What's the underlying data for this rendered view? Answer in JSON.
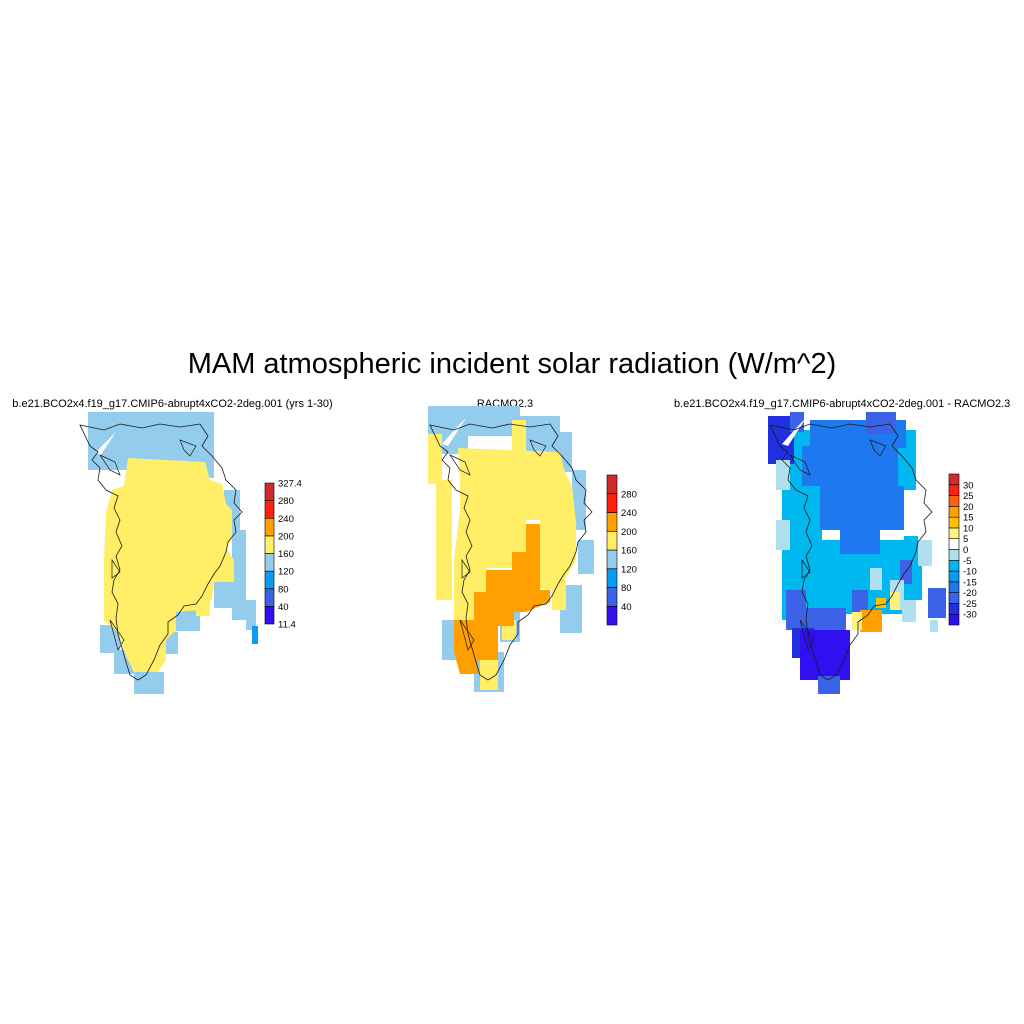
{
  "title": "MAM atmospheric incident solar radiation (W/m^2)",
  "panels": [
    {
      "id": "p1",
      "title": "b.e21.BCO2x4.f19_g17.CMIP6-abrupt4xCO2-2deg.001 (yrs 1-30)",
      "colorbar": {
        "colors": [
          "#3010f0",
          "#3c62e8",
          "#0a9cf0",
          "#94cced",
          "#ffee66",
          "#ffa000",
          "#ff2010",
          "#d02a2a"
        ],
        "labels": [
          "11.4",
          "40",
          "80",
          "120",
          "160",
          "200",
          "240",
          "280",
          "327.4"
        ]
      }
    },
    {
      "id": "p2",
      "title": "RACMO2.3",
      "colorbar": {
        "colors": [
          "#3010f0",
          "#3c62e8",
          "#0a9cf0",
          "#94cced",
          "#ffee66",
          "#ffa000",
          "#ff2010",
          "#d02a2a"
        ],
        "labels": [
          "40",
          "80",
          "120",
          "160",
          "200",
          "240",
          "280"
        ]
      }
    },
    {
      "id": "p3",
      "title": "b.e21.BCO2x4.f19_g17.CMIP6-abrupt4xCO2-2deg.001 - RACMO2.3",
      "colorbar": {
        "colors": [
          "#3010f0",
          "#2030e0",
          "#3c62e8",
          "#1e78f0",
          "#0a9cf0",
          "#00b8f0",
          "#b0e0f0",
          "#ffffff",
          "#fff080",
          "#ffc000",
          "#ffa000",
          "#ff6010",
          "#ff2010",
          "#d02a2a"
        ],
        "labels": [
          "-30",
          "-25",
          "-20",
          "-15",
          "-10",
          "-5",
          "0",
          "5",
          "10",
          "15",
          "20",
          "25",
          "30"
        ]
      }
    }
  ]
}
